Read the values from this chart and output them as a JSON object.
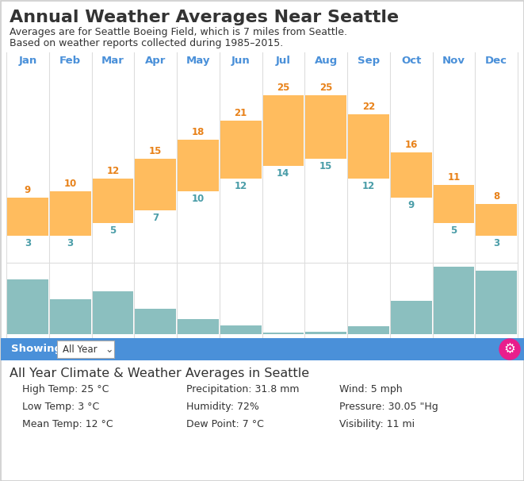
{
  "title": "Annual Weather Averages Near Seattle",
  "subtitle1": "Averages are for Seattle Boeing Field, which is 7 miles from Seattle.",
  "subtitle2": "Based on weather reports collected during 1985–2015.",
  "months": [
    "Jan",
    "Feb",
    "Mar",
    "Apr",
    "May",
    "Jun",
    "Jul",
    "Aug",
    "Sep",
    "Oct",
    "Nov",
    "Dec"
  ],
  "high_temps": [
    9,
    10,
    12,
    15,
    18,
    21,
    25,
    25,
    22,
    16,
    11,
    8
  ],
  "low_temps": [
    3,
    3,
    5,
    7,
    10,
    12,
    14,
    15,
    12,
    9,
    5,
    3
  ],
  "precipitation": [
    58.4,
    37,
    45.4,
    27.2,
    16,
    9.1,
    2.1,
    2.8,
    8.6,
    35.5,
    71.6,
    68.1
  ],
  "bar_color_orange": "#FFBC5E",
  "bar_color_teal": "#8BBFBF",
  "month_label_color": "#4A90D9",
  "high_temp_color": "#E8821A",
  "low_temp_color": "#4A9DA8",
  "text_color_dark": "#333333",
  "header_bg": "#4A90D9",
  "header_text": "#FFFFFF",
  "showing_label": "Showing:",
  "dropdown_text": "All Year",
  "info_title": "All Year Climate & Weather Averages in Seattle",
  "info_items": [
    [
      "High Temp: 25 °C",
      "Precipitation: 31.8 mm",
      "Wind: 5 mph"
    ],
    [
      "Low Temp: 3 °C",
      "Humidity: 72%",
      "Pressure: 30.05 \"Hg"
    ],
    [
      "Mean Temp: 12 °C",
      "Dew Point: 7 °C",
      "Visibility: 11 mi"
    ]
  ],
  "bg_color": "#FFFFFF",
  "border_color": "#CCCCCC",
  "gear_color": "#E91E8C",
  "sep_color": "#DDDDDD"
}
